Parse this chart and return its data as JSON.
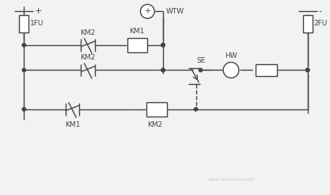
{
  "bg_color": "#f2f2f2",
  "line_color": "#444444",
  "lw": 1.0,
  "figsize": [
    4.17,
    2.46
  ],
  "dpi": 100,
  "watermark": "www.elecfans.com",
  "plus_label": "+",
  "minus_label": "-",
  "label_1FU": "1FU",
  "label_2FU": "2FU",
  "label_WTW": "WTW",
  "label_KM1": "KM1",
  "label_KM2": "KM2",
  "label_KM1b": "KM1",
  "label_KM2b": "KM2",
  "label_KM2c": "KM2",
  "label_SE": "SE",
  "label_HW": "HW"
}
